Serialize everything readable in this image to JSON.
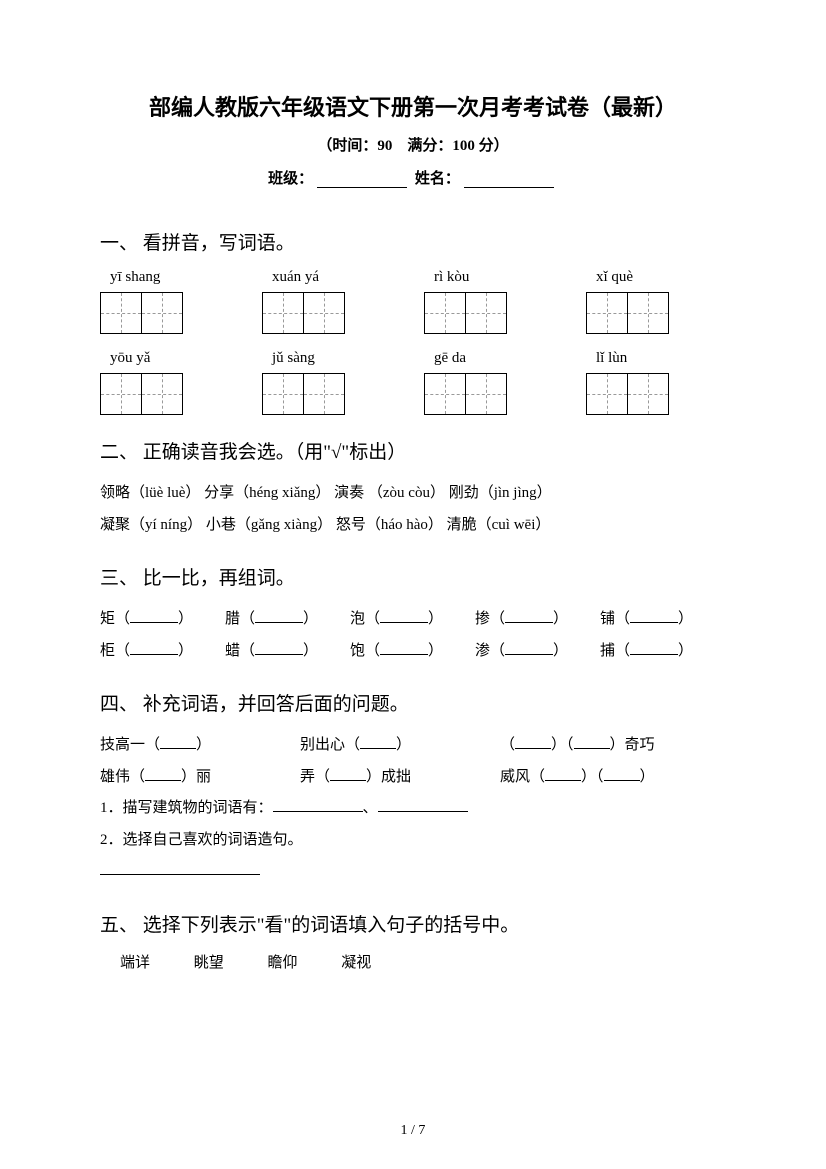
{
  "title": "部编人教版六年级语文下册第一次月考考试卷（最新）",
  "subtitle": "（时间：90　满分：100 分）",
  "class_label": "班级：",
  "name_label": "姓名：",
  "sections": {
    "s1": {
      "title": "一、 看拼音，写词语。",
      "pinyin_row1": [
        "yī shang",
        "xuán yá",
        "rì kòu",
        "xǐ què"
      ],
      "pinyin_row2": [
        "yōu yǎ",
        "jǔ sàng",
        "gē da",
        "lǐ lùn"
      ]
    },
    "s2": {
      "title": "二、 正确读音我会选。（用\"√\"标出）",
      "line1": "领略（lüè luè）  分享（héng xiǎng）   演奏 （zòu   còu）  刚劲（jìn   jìng）",
      "line2": "凝聚（yí níng）  小巷（gǎng xiàng）   怒号（háo   hào）   清脆（cuì   wēi）"
    },
    "s3": {
      "title": "三、 比一比，再组词。",
      "row1": [
        "矩（",
        "腊（",
        "泡（",
        "掺（",
        "铺（"
      ],
      "row2": [
        "柜（",
        "蜡（",
        "饱（",
        "渗（",
        "捕（"
      ]
    },
    "s4": {
      "title": "四、 补充词语，并回答后面的问题。",
      "r1c1a": "技高一（",
      "r1c1b": "）",
      "r1c2a": "别出心（",
      "r1c2b": "）",
      "r1c3a": "（",
      "r1c3b": "）（",
      "r1c3c": "）奇巧",
      "r2c1a": "雄伟（",
      "r2c1b": "）丽",
      "r2c2a": "弄（",
      "r2c2b": "）成拙",
      "r2c3a": "威风（",
      "r2c3b": "）（",
      "r2c3c": "）",
      "q1": "1．描写建筑物的词语有：",
      "q1_sep": "、",
      "q2": "2．选择自己喜欢的词语造句。"
    },
    "s5": {
      "title": "五、 选择下列表示\"看\"的词语填入句子的括号中。",
      "words": [
        "端详",
        "眺望",
        "瞻仰",
        "凝视"
      ]
    }
  },
  "footer": "1 / 7",
  "close_paren": "）"
}
